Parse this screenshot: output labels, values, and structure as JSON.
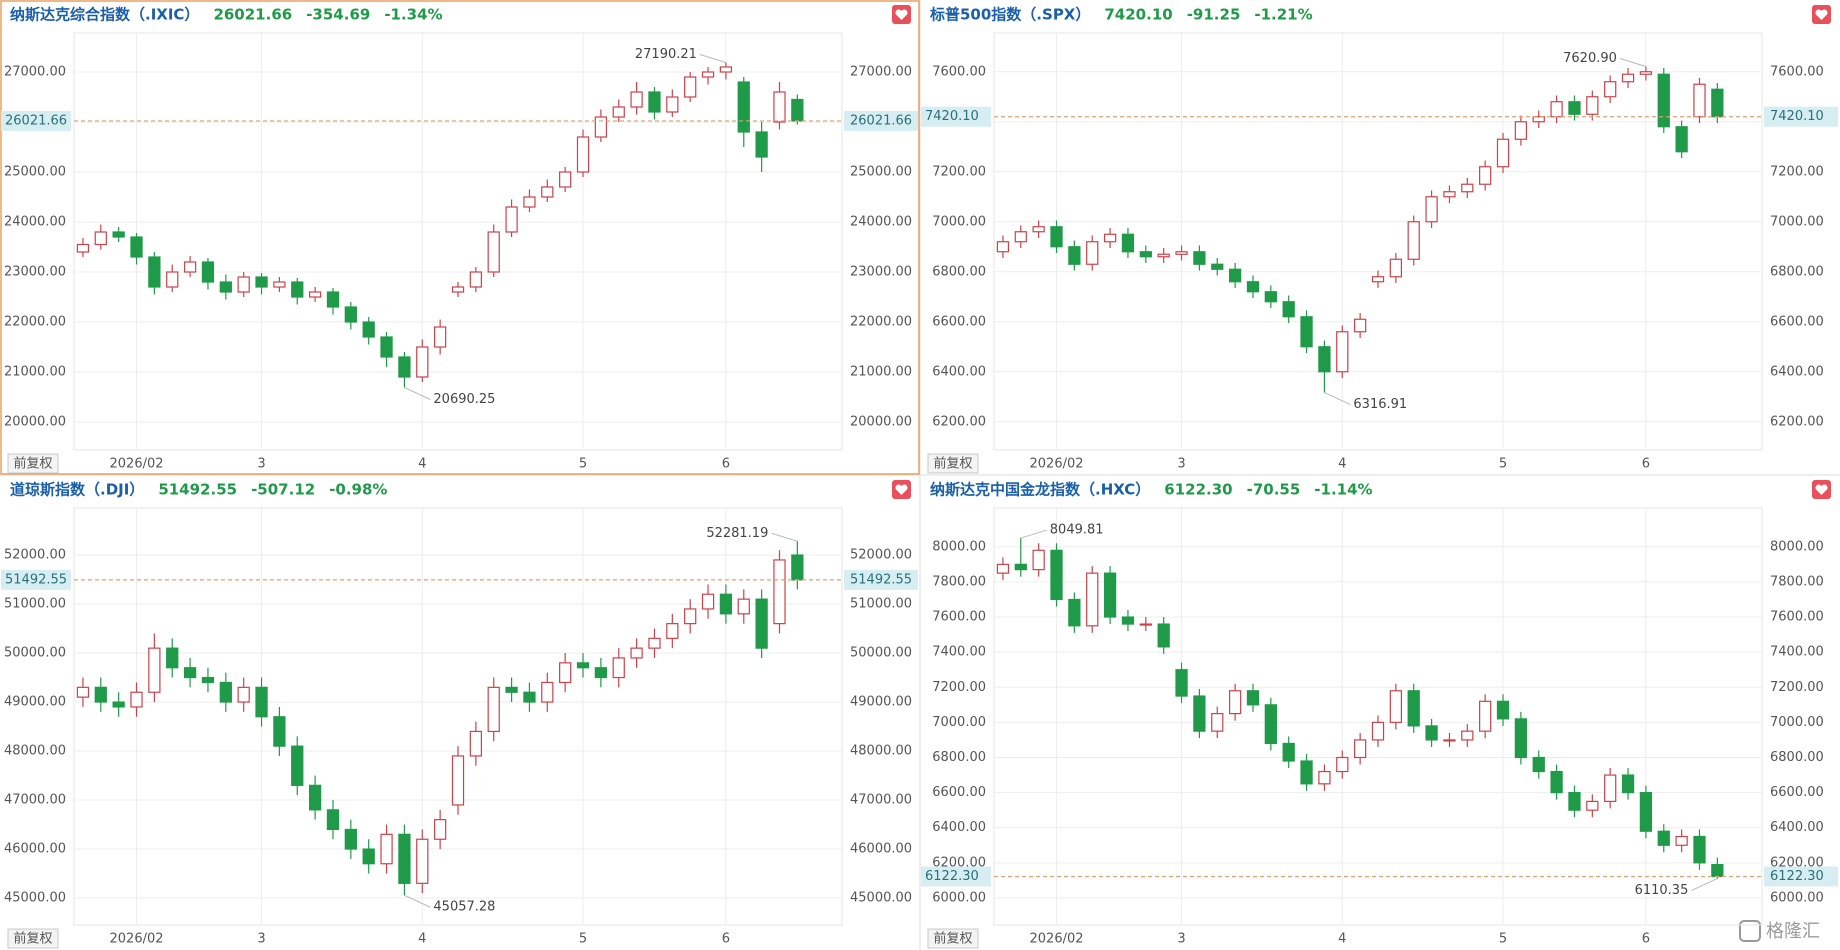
{
  "adjust_button": "前复权",
  "watermark": "格隆汇",
  "chart_data": [
    {
      "type": "candlestick",
      "title": "纳斯达克综合指数（.IXIC）",
      "last": {
        "value": 26021.66,
        "label": "26021.66"
      },
      "change": -354.69,
      "change_pct": "-1.34%",
      "max_label": "27190.21",
      "min_label": "20690.25",
      "up_color": "#c9434a",
      "down_color": "#1f9a48",
      "price_line_color": "#e0a070",
      "title_color": "#1a5fa8",
      "change_color": "#1f9a48",
      "categories": [
        null,
        null,
        null,
        "2026/02",
        null,
        null,
        null,
        null,
        null,
        null,
        "3",
        null,
        null,
        null,
        null,
        null,
        null,
        null,
        null,
        "4",
        null,
        null,
        null,
        null,
        null,
        null,
        null,
        null,
        "5",
        null,
        null,
        null,
        null,
        null,
        null,
        null,
        "6",
        null,
        null,
        null,
        null
      ],
      "open": [
        23400,
        23550,
        23800,
        23700,
        23300,
        22700,
        23000,
        23200,
        22800,
        22600,
        22900,
        22700,
        22800,
        22500,
        22600,
        22300,
        22000,
        21700,
        21300,
        20900,
        21500,
        22600,
        22700,
        23000,
        23800,
        24300,
        24500,
        24700,
        25000,
        25700,
        26100,
        26300,
        26600,
        26200,
        26500,
        26900,
        27000,
        26800,
        25800,
        26000,
        26450
      ],
      "high": [
        23680,
        23950,
        23900,
        23780,
        23400,
        23150,
        23320,
        23280,
        22950,
        23000,
        22980,
        22900,
        22880,
        22700,
        22680,
        22400,
        22100,
        21800,
        21400,
        21650,
        22050,
        22800,
        23100,
        23950,
        24450,
        24650,
        24850,
        25100,
        25850,
        26250,
        26450,
        26800,
        26700,
        26650,
        27000,
        27100,
        27190.21,
        26900,
        26000,
        26800,
        26550
      ],
      "low": [
        23300,
        23450,
        23600,
        23150,
        22550,
        22600,
        22900,
        22650,
        22450,
        22500,
        22550,
        22600,
        22350,
        22400,
        22150,
        21850,
        21550,
        21100,
        20690.25,
        20800,
        21350,
        22500,
        22600,
        22900,
        23700,
        24200,
        24400,
        24600,
        24900,
        25600,
        26000,
        26150,
        26050,
        26100,
        26400,
        26750,
        26850,
        25500,
        25000,
        25850,
        25950
      ],
      "close": [
        23550,
        23800,
        23700,
        23300,
        22700,
        23000,
        23200,
        22800,
        22600,
        22900,
        22700,
        22800,
        22500,
        22600,
        22300,
        22000,
        21700,
        21300,
        20900,
        21500,
        21900,
        22700,
        23000,
        23800,
        24300,
        24500,
        24700,
        25000,
        25700,
        26100,
        26300,
        26600,
        26200,
        26500,
        26900,
        27000,
        27100,
        25800,
        25300,
        26600,
        26021.66
      ],
      "ylim": [
        19440,
        27780
      ],
      "yticks": [
        {
          "value": 20000,
          "label": "20000.00"
        },
        {
          "value": 21000,
          "label": "21000.00"
        },
        {
          "value": 22000,
          "label": "22000.00"
        },
        {
          "value": 23000,
          "label": "23000.00"
        },
        {
          "value": 24000,
          "label": "24000.00"
        },
        {
          "value": 25000,
          "label": "25000.00"
        },
        {
          "value": 26000,
          "label": "26000.00"
        },
        {
          "value": 27000,
          "label": "27000.00"
        }
      ],
      "grid": true,
      "selected": true
    },
    {
      "type": "candlestick",
      "title": "标普500指数（.SPX）",
      "last": {
        "value": 7420.1,
        "label": "7420.10"
      },
      "change": -91.25,
      "change_pct": "-1.21%",
      "max_label": "7620.90",
      "min_label": "6316.91",
      "up_color": "#c9434a",
      "down_color": "#1f9a48",
      "price_line_color": "#e0a070",
      "title_color": "#1a5fa8",
      "change_color": "#1f9a48",
      "categories": [
        null,
        null,
        null,
        "2026/02",
        null,
        null,
        null,
        null,
        null,
        null,
        "3",
        null,
        null,
        null,
        null,
        null,
        null,
        null,
        null,
        "4",
        null,
        null,
        null,
        null,
        null,
        null,
        null,
        null,
        "5",
        null,
        null,
        null,
        null,
        null,
        null,
        null,
        "6",
        null,
        null,
        null,
        null
      ],
      "open": [
        6880,
        6920,
        6960,
        6980,
        6900,
        6830,
        6920,
        6950,
        6880,
        6860,
        6870,
        6880,
        6830,
        6810,
        6760,
        6720,
        6680,
        6620,
        6500,
        6400,
        6560,
        6760,
        6780,
        6850,
        7000,
        7100,
        7120,
        7150,
        7220,
        7330,
        7400,
        7420,
        7480,
        7430,
        7500,
        7560,
        7590,
        7590,
        7380,
        7420,
        7530
      ],
      "high": [
        6945,
        6985,
        7005,
        7005,
        6925,
        6945,
        6975,
        6975,
        6905,
        6895,
        6905,
        6905,
        6855,
        6835,
        6785,
        6745,
        6705,
        6645,
        6525,
        6585,
        6635,
        6805,
        6875,
        7025,
        7125,
        7145,
        7175,
        7245,
        7355,
        7425,
        7445,
        7505,
        7505,
        7525,
        7585,
        7615,
        7620.9,
        7615,
        7405,
        7575,
        7555
      ],
      "low": [
        6855,
        6895,
        6935,
        6875,
        6805,
        6805,
        6895,
        6855,
        6835,
        6835,
        6845,
        6805,
        6785,
        6735,
        6695,
        6655,
        6595,
        6475,
        6316.91,
        6375,
        6535,
        6735,
        6755,
        6825,
        6975,
        7075,
        7095,
        7125,
        7195,
        7305,
        7375,
        7395,
        7405,
        7405,
        7475,
        7535,
        7565,
        7355,
        7255,
        7395,
        7395
      ],
      "close": [
        6920,
        6960,
        6980,
        6900,
        6830,
        6920,
        6950,
        6880,
        6860,
        6870,
        6880,
        6830,
        6810,
        6760,
        6720,
        6680,
        6620,
        6500,
        6400,
        6560,
        6610,
        6780,
        6850,
        7000,
        7100,
        7120,
        7150,
        7220,
        7330,
        7400,
        7420,
        7480,
        7430,
        7500,
        7560,
        7590,
        7600,
        7380,
        7280,
        7550,
        7420.1
      ],
      "ylim": [
        6087,
        7755
      ],
      "yticks": [
        {
          "value": 6200,
          "label": "6200.00"
        },
        {
          "value": 6400,
          "label": "6400.00"
        },
        {
          "value": 6600,
          "label": "6600.00"
        },
        {
          "value": 6800,
          "label": "6800.00"
        },
        {
          "value": 7000,
          "label": "7000.00"
        },
        {
          "value": 7200,
          "label": "7200.00"
        },
        {
          "value": 7400,
          "label": "7400.00"
        },
        {
          "value": 7600,
          "label": "7600.00"
        }
      ],
      "grid": true,
      "selected": false
    },
    {
      "type": "candlestick",
      "title": "道琼斯指数（.DJI）",
      "last": {
        "value": 51492.55,
        "label": "51492.55"
      },
      "change": -507.12,
      "change_pct": "-0.98%",
      "max_label": "52281.19",
      "min_label": "45057.28",
      "up_color": "#c9434a",
      "down_color": "#1f9a48",
      "price_line_color": "#e0a070",
      "title_color": "#1a5fa8",
      "change_color": "#1f9a48",
      "categories": [
        null,
        null,
        null,
        "2026/02",
        null,
        null,
        null,
        null,
        null,
        null,
        "3",
        null,
        null,
        null,
        null,
        null,
        null,
        null,
        null,
        "4",
        null,
        null,
        null,
        null,
        null,
        null,
        null,
        null,
        "5",
        null,
        null,
        null,
        null,
        null,
        null,
        null,
        "6",
        null,
        null,
        null,
        null
      ],
      "open": [
        49100,
        49300,
        49000,
        48900,
        49200,
        50100,
        49700,
        49500,
        49400,
        49000,
        49300,
        48700,
        48100,
        47300,
        46800,
        46400,
        46000,
        45700,
        46300,
        45300,
        46200,
        46900,
        47900,
        48400,
        49300,
        49200,
        49000,
        49400,
        49800,
        49700,
        49500,
        49900,
        50100,
        50300,
        50600,
        50900,
        51200,
        50800,
        51100,
        50600,
        52000
      ],
      "high": [
        49500,
        49500,
        49200,
        49400,
        50400,
        50300,
        49900,
        49700,
        49600,
        49500,
        49500,
        48900,
        48300,
        47500,
        47000,
        46600,
        46200,
        46500,
        46500,
        46400,
        46800,
        48100,
        48600,
        49500,
        49500,
        49400,
        49600,
        50000,
        50000,
        49900,
        50100,
        50300,
        50500,
        50800,
        51100,
        51400,
        51400,
        51300,
        51300,
        52100,
        52281.19
      ],
      "low": [
        48900,
        48800,
        48700,
        48700,
        49000,
        49500,
        49300,
        49200,
        48800,
        48800,
        48500,
        47900,
        47100,
        46600,
        46200,
        45800,
        45500,
        45500,
        45057.28,
        45100,
        46000,
        46700,
        47700,
        48200,
        49000,
        48800,
        48800,
        49200,
        49500,
        49300,
        49300,
        49700,
        49900,
        50100,
        50400,
        50700,
        50600,
        50600,
        49900,
        50400,
        51300
      ],
      "close": [
        49300,
        49000,
        48900,
        49200,
        50100,
        49700,
        49500,
        49400,
        49000,
        49300,
        48700,
        48100,
        47300,
        46800,
        46400,
        46000,
        45700,
        46300,
        45300,
        46200,
        46600,
        47900,
        48400,
        49300,
        49200,
        49000,
        49400,
        49800,
        49700,
        49500,
        49900,
        50100,
        50300,
        50600,
        50900,
        51200,
        50800,
        51100,
        50100,
        51900,
        51492.55
      ],
      "ylim": [
        44450,
        52960
      ],
      "yticks": [
        {
          "value": 45000,
          "label": "45000.00"
        },
        {
          "value": 46000,
          "label": "46000.00"
        },
        {
          "value": 47000,
          "label": "47000.00"
        },
        {
          "value": 48000,
          "label": "48000.00"
        },
        {
          "value": 49000,
          "label": "49000.00"
        },
        {
          "value": 50000,
          "label": "50000.00"
        },
        {
          "value": 51000,
          "label": "51000.00"
        },
        {
          "value": 52000,
          "label": "52000.00"
        }
      ],
      "grid": true,
      "selected": false
    },
    {
      "type": "candlestick",
      "title": "纳斯达克中国金龙指数（.HXC）",
      "last": {
        "value": 6122.3,
        "label": "6122.30"
      },
      "change": -70.55,
      "change_pct": "-1.14%",
      "max_label": "8049.81",
      "min_label": "6110.35",
      "up_color": "#c9434a",
      "down_color": "#1f9a48",
      "price_line_color": "#e0a070",
      "title_color": "#1a5fa8",
      "change_color": "#1f9a48",
      "categories": [
        null,
        null,
        null,
        "2026/02",
        null,
        null,
        null,
        null,
        null,
        null,
        "3",
        null,
        null,
        null,
        null,
        null,
        null,
        null,
        null,
        "4",
        null,
        null,
        null,
        null,
        null,
        null,
        null,
        null,
        "5",
        null,
        null,
        null,
        null,
        null,
        null,
        null,
        "6",
        null,
        null,
        null,
        null
      ],
      "open": [
        7850,
        7900,
        7870,
        7980,
        7700,
        7550,
        7850,
        7600,
        7560,
        7560,
        7300,
        7150,
        6950,
        7050,
        7180,
        7100,
        6880,
        6780,
        6650,
        6720,
        6800,
        6900,
        7000,
        7180,
        6980,
        6900,
        6900,
        6950,
        7120,
        7020,
        6800,
        6720,
        6600,
        6500,
        6550,
        6700,
        6600,
        6380,
        6300,
        6350,
        6190
      ],
      "high": [
        7940,
        8049.81,
        8020,
        8020,
        7740,
        7890,
        7890,
        7640,
        7600,
        7600,
        7340,
        7190,
        7090,
        7220,
        7220,
        7140,
        6920,
        6820,
        6760,
        6840,
        6940,
        7040,
        7220,
        7220,
        7020,
        6940,
        6990,
        7160,
        7160,
        7060,
        6840,
        6760,
        6640,
        6590,
        6740,
        6740,
        6640,
        6420,
        6390,
        6390,
        6230
      ],
      "low": [
        7810,
        7830,
        7830,
        7660,
        7510,
        7510,
        7560,
        7520,
        7520,
        7390,
        7110,
        6910,
        6910,
        7010,
        7060,
        6840,
        6740,
        6610,
        6610,
        6680,
        6760,
        6860,
        6960,
        6940,
        6860,
        6860,
        6860,
        6910,
        6980,
        6760,
        6680,
        6560,
        6460,
        6460,
        6510,
        6560,
        6340,
        6260,
        6260,
        6160,
        6110.35
      ],
      "close": [
        7900,
        7870,
        7980,
        7700,
        7550,
        7850,
        7600,
        7560,
        7560,
        7430,
        7150,
        6950,
        7050,
        7180,
        7100,
        6880,
        6780,
        6650,
        6720,
        6800,
        6900,
        7000,
        7180,
        6980,
        6900,
        6900,
        6950,
        7120,
        7020,
        6800,
        6720,
        6600,
        6500,
        6550,
        6700,
        6600,
        6380,
        6300,
        6350,
        6200,
        6122.3
      ],
      "ylim": [
        5846,
        8221
      ],
      "yticks": [
        {
          "value": 6000,
          "label": "6000.00"
        },
        {
          "value": 6200,
          "label": "6200.00"
        },
        {
          "value": 6400,
          "label": "6400.00"
        },
        {
          "value": 6600,
          "label": "6600.00"
        },
        {
          "value": 6800,
          "label": "6800.00"
        },
        {
          "value": 7000,
          "label": "7000.00"
        },
        {
          "value": 7200,
          "label": "7200.00"
        },
        {
          "value": 7400,
          "label": "7400.00"
        },
        {
          "value": 7600,
          "label": "7600.00"
        },
        {
          "value": 7800,
          "label": "7800.00"
        },
        {
          "value": 8000,
          "label": "8000.00"
        }
      ],
      "grid": true,
      "selected": false
    }
  ]
}
